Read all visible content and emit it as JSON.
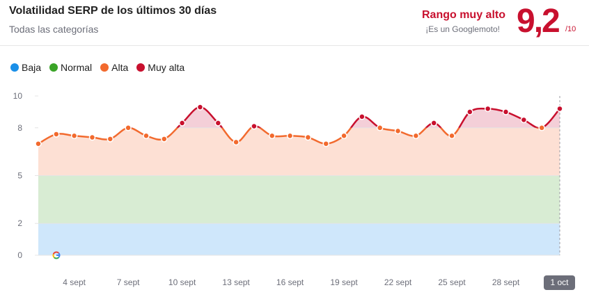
{
  "header": {
    "title": "Volatilidad SERP de los últimos 30 días",
    "subtitle": "Todas las categorías",
    "range_label": "Rango muy alto",
    "range_sub": "¡Es un Googlemoto!",
    "score": "9,2",
    "score_den": "/10"
  },
  "legend": [
    {
      "label": "Baja",
      "color": "#1a8fe8"
    },
    {
      "label": "Normal",
      "color": "#3aa427"
    },
    {
      "label": "Alta",
      "color": "#f26a2e"
    },
    {
      "label": "Muy alta",
      "color": "#c8102e"
    }
  ],
  "selected_date": "1 oct",
  "chart_data": {
    "type": "area",
    "y_ticks": [
      10,
      8,
      5,
      2,
      0
    ],
    "ylim": [
      0,
      10
    ],
    "bands": [
      {
        "name": "Baja",
        "from": 0,
        "to": 2,
        "color": "#cfe7fb"
      },
      {
        "name": "Normal",
        "from": 2,
        "to": 5,
        "color": "#d8ecd3"
      },
      {
        "name": "Alta",
        "from": 5,
        "to": 8,
        "color": "#fde0d4"
      },
      {
        "name": "Muy alta",
        "from": 8,
        "to": 10,
        "color": "#f4cfd8"
      }
    ],
    "x_tick_labels": [
      {
        "index": 2,
        "label": "4 sept"
      },
      {
        "index": 5,
        "label": "7 sept"
      },
      {
        "index": 8,
        "label": "10 sept"
      },
      {
        "index": 11,
        "label": "13 sept"
      },
      {
        "index": 14,
        "label": "16 sept"
      },
      {
        "index": 17,
        "label": "19 sept"
      },
      {
        "index": 20,
        "label": "22 sept"
      },
      {
        "index": 23,
        "label": "25 sept"
      },
      {
        "index": 26,
        "label": "28 sept"
      }
    ],
    "values": [
      7.0,
      7.6,
      7.5,
      7.4,
      7.3,
      8.0,
      7.5,
      7.3,
      8.3,
      9.3,
      8.3,
      7.1,
      8.1,
      7.5,
      7.5,
      7.4,
      7.0,
      7.5,
      8.7,
      8.0,
      7.8,
      7.5,
      8.3,
      7.5,
      9.0,
      9.2,
      9.0,
      8.5,
      8.0,
      9.2
    ],
    "color_alta": "#f26a2e",
    "color_muy_alta": "#c8102e",
    "threshold": 8
  }
}
